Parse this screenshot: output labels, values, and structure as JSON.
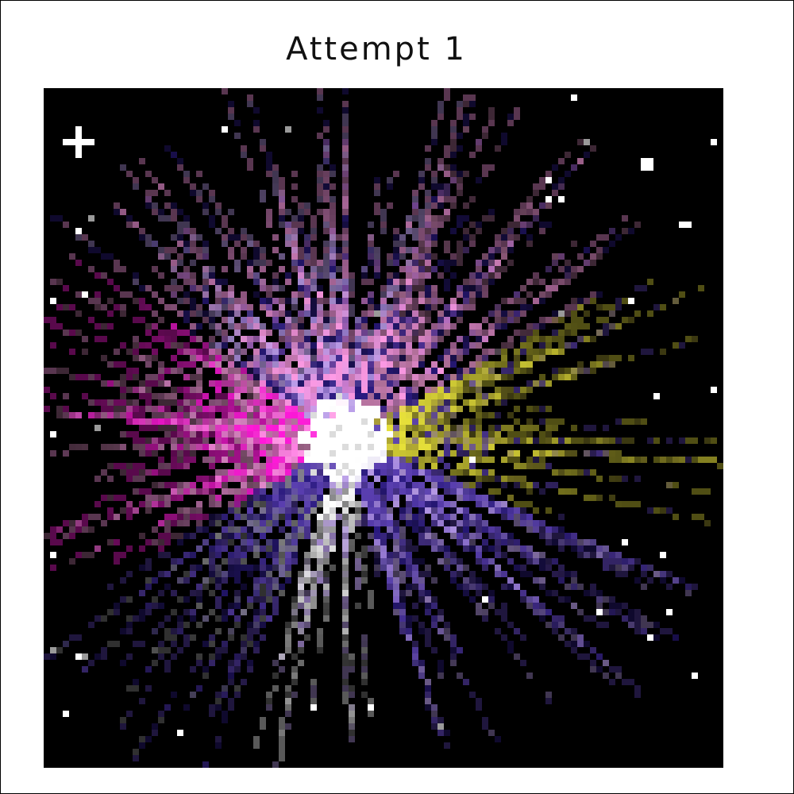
{
  "figure": {
    "title": "Attempt 1"
  },
  "artwork": {
    "subject": "pixel-art-starburst",
    "background": "#000000",
    "palette": {
      "core": "#ffffff",
      "magenta": "#ff1ad9",
      "pink": "#ff9be6",
      "mauve": "#b07099",
      "yellow": "#e6e03a",
      "olive": "#a8a030",
      "purple": "#5a3fb0",
      "indigo": "#2a1a80",
      "lavender": "#b89be8",
      "gray": "#8a8a8a"
    }
  }
}
